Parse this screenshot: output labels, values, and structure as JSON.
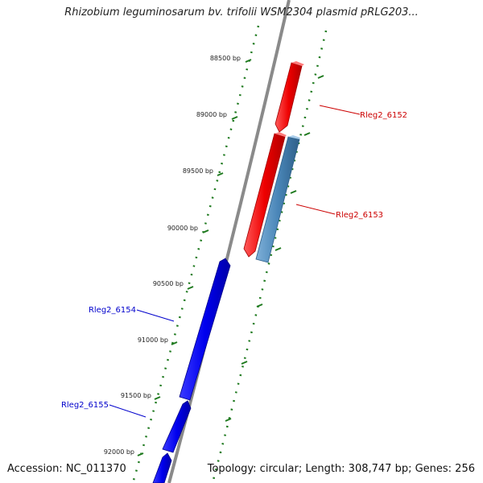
{
  "title": "Rhizobium leguminosarum bv. trifolii WSM2304 plasmid pRLG203...",
  "footer": {
    "accession": "Accession: NC_011370",
    "summary": "Topology: circular; Length: 308,747 bp; Genes: 256"
  },
  "colors": {
    "backbone": "#8a8a8a",
    "tick": "#1f7a1f",
    "forward_gene": "#ee0000",
    "reverse_gene": "#0000ee",
    "other_gene": "#4a86b8",
    "forward_label": "#cc0000",
    "reverse_label": "#0000cc"
  },
  "ruler": {
    "tick_labels": [
      "88500 bp",
      "89000 bp",
      "89500 bp",
      "90000 bp",
      "90500 bp",
      "91000 bp",
      "91500 bp",
      "92000 bp"
    ]
  },
  "genes": [
    {
      "id": "Rleg2_6152",
      "strand": "forward",
      "label": "Rleg2_6152"
    },
    {
      "id": "Rleg2_6153",
      "strand": "other",
      "label": "Rleg2_6153"
    },
    {
      "id": "Rleg2_6154",
      "strand": "reverse",
      "label": "Rleg2_6154"
    },
    {
      "id": "Rleg2_6155",
      "strand": "reverse",
      "label": "Rleg2_6155"
    }
  ]
}
